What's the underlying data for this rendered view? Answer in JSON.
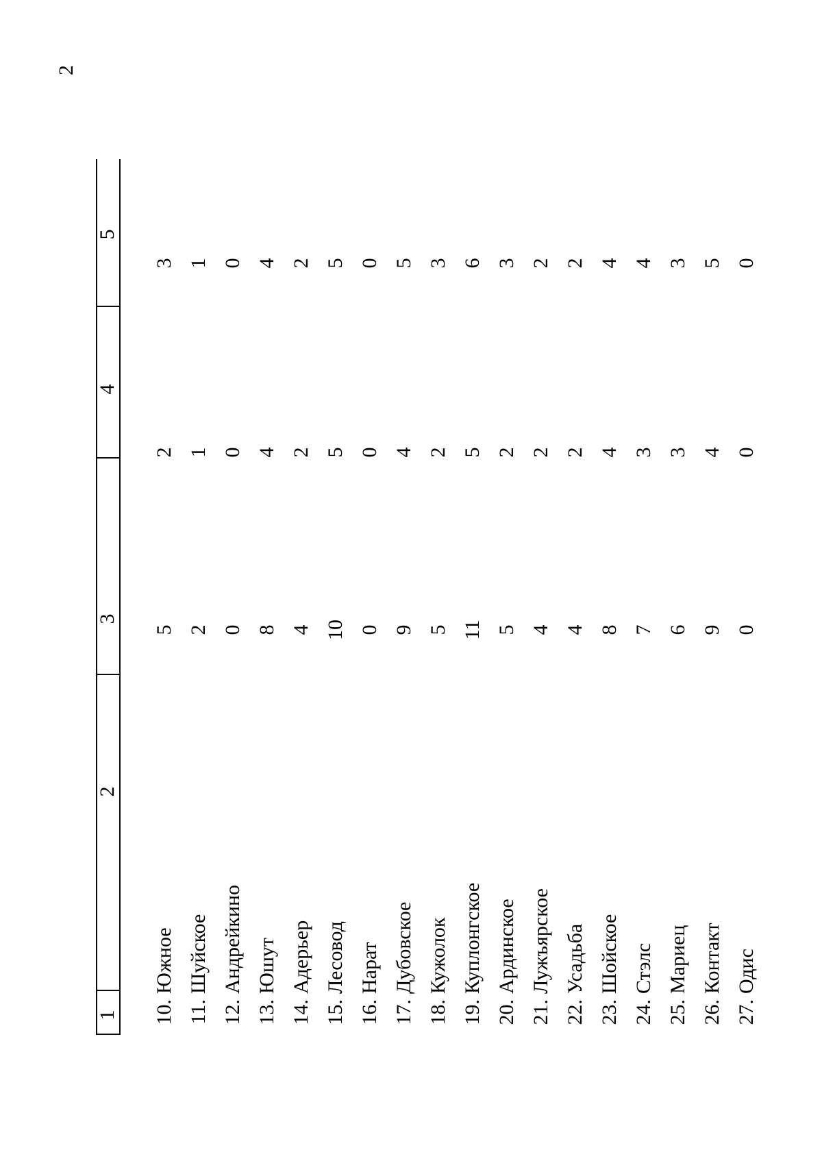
{
  "page_number": "2",
  "table": {
    "column_headers": [
      "1",
      "2",
      "3",
      "4",
      "5"
    ],
    "rows": [
      {
        "num": "10.",
        "name": "Южное",
        "c3": "5",
        "c4": "2",
        "c5": "3"
      },
      {
        "num": "11.",
        "name": "Шуйское",
        "c3": "2",
        "c4": "1",
        "c5": "1"
      },
      {
        "num": "12.",
        "name": "Андрейкино",
        "c3": "0",
        "c4": "0",
        "c5": "0"
      },
      {
        "num": "13.",
        "name": "Юшут",
        "c3": "8",
        "c4": "4",
        "c5": "4"
      },
      {
        "num": "14.",
        "name": "Адерьер",
        "c3": "4",
        "c4": "2",
        "c5": "2"
      },
      {
        "num": "15.",
        "name": "Лесовод",
        "c3": "10",
        "c4": "5",
        "c5": "5"
      },
      {
        "num": "16.",
        "name": "Нарат",
        "c3": "0",
        "c4": "0",
        "c5": "0"
      },
      {
        "num": "17.",
        "name": "Дубовское",
        "c3": "9",
        "c4": "4",
        "c5": "5"
      },
      {
        "num": "18.",
        "name": "Кужолок",
        "c3": "5",
        "c4": "2",
        "c5": "3"
      },
      {
        "num": "19.",
        "name": "Куплонгское",
        "c3": "11",
        "c4": "5",
        "c5": "6"
      },
      {
        "num": "20.",
        "name": "Ардинское",
        "c3": "5",
        "c4": "2",
        "c5": "3"
      },
      {
        "num": "21.",
        "name": "Лужъярское",
        "c3": "4",
        "c4": "2",
        "c5": "2"
      },
      {
        "num": "22.",
        "name": "Усадьба",
        "c3": "4",
        "c4": "2",
        "c5": "2"
      },
      {
        "num": "23.",
        "name": "Шойское",
        "c3": "8",
        "c4": "4",
        "c5": "4"
      },
      {
        "num": "24.",
        "name": "Стэлс",
        "c3": "7",
        "c4": "3",
        "c5": "4"
      },
      {
        "num": "25.",
        "name": "Мариец",
        "c3": "6",
        "c4": "3",
        "c5": "3"
      },
      {
        "num": "26.",
        "name": "Контакт",
        "c3": "9",
        "c4": "4",
        "c5": "5"
      },
      {
        "num": "27.",
        "name": "Одис",
        "c3": "0",
        "c4": "0",
        "c5": "0"
      }
    ]
  }
}
